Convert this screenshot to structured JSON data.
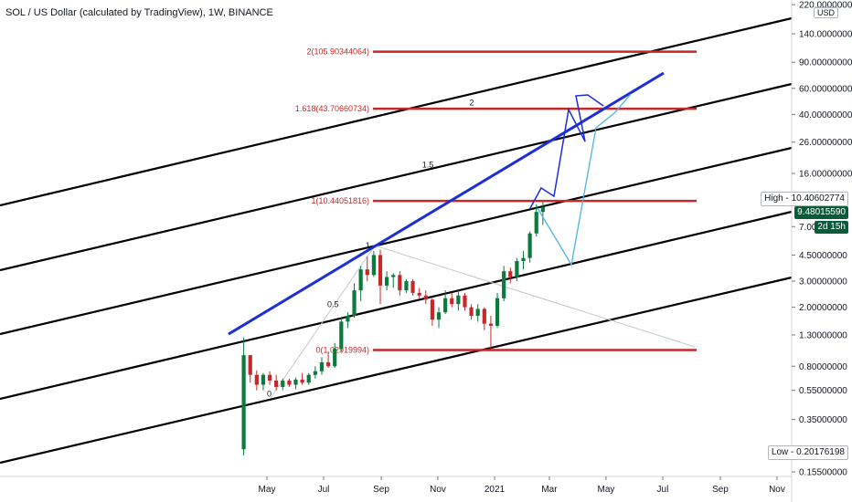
{
  "title": "SOL / US Dollar (calculated by TradingView), 1W, BINANCE",
  "currency_label": "USD",
  "price_badges": {
    "high": "High - 10.40602774",
    "last": "9.48015590",
    "countdown": "2d 15h",
    "low": "Low - 0.20176198"
  },
  "chart_data": {
    "type": "candlestick",
    "yscale": "log",
    "ylim": [
      0.13,
      240
    ],
    "y_ticks": [
      "220.00000000",
      "140.00000000",
      "90.00000000",
      "60.00000000",
      "40.00000000",
      "26.00000000",
      "16.00000000",
      "7.00",
      "4.50000000",
      "3.00000000",
      "2.00000000",
      "1.30000000",
      "0.80000000",
      "0.55000000",
      "0.35000000",
      "0.22000000",
      "0.15500000"
    ],
    "y_tick_values": [
      220,
      140,
      90,
      60,
      40,
      26,
      16,
      7,
      4.5,
      3,
      2,
      1.3,
      0.8,
      0.55,
      0.35,
      0.22,
      0.155
    ],
    "x_ticks": [
      {
        "label": "May",
        "date": "2020-05-01"
      },
      {
        "label": "Jul",
        "date": "2020-07-01"
      },
      {
        "label": "Sep",
        "date": "2020-09-01"
      },
      {
        "label": "Nov",
        "date": "2020-11-01"
      },
      {
        "label": "2021",
        "date": "2021-01-01"
      },
      {
        "label": "Mar",
        "date": "2021-03-01"
      },
      {
        "label": "May",
        "date": "2021-05-01"
      },
      {
        "label": "Jul",
        "date": "2021-07-01"
      },
      {
        "label": "Sep",
        "date": "2021-09-01"
      },
      {
        "label": "Nov",
        "date": "2021-11-01"
      }
    ],
    "xlim": [
      "2020-03-01",
      "2021-12-01"
    ],
    "candles": [
      {
        "t": "2020-04-06",
        "o": 0.22,
        "h": 1.25,
        "l": 0.2,
        "c": 0.95
      },
      {
        "t": "2020-04-13",
        "o": 0.95,
        "h": 0.95,
        "l": 0.62,
        "c": 0.7
      },
      {
        "t": "2020-04-20",
        "o": 0.7,
        "h": 0.75,
        "l": 0.55,
        "c": 0.6
      },
      {
        "t": "2020-04-27",
        "o": 0.6,
        "h": 0.72,
        "l": 0.55,
        "c": 0.7
      },
      {
        "t": "2020-05-04",
        "o": 0.7,
        "h": 0.74,
        "l": 0.6,
        "c": 0.64
      },
      {
        "t": "2020-05-11",
        "o": 0.64,
        "h": 0.7,
        "l": 0.55,
        "c": 0.58
      },
      {
        "t": "2020-05-18",
        "o": 0.58,
        "h": 0.66,
        "l": 0.55,
        "c": 0.64
      },
      {
        "t": "2020-05-25",
        "o": 0.64,
        "h": 0.66,
        "l": 0.58,
        "c": 0.6
      },
      {
        "t": "2020-06-01",
        "o": 0.6,
        "h": 0.67,
        "l": 0.56,
        "c": 0.65
      },
      {
        "t": "2020-06-08",
        "o": 0.65,
        "h": 0.72,
        "l": 0.6,
        "c": 0.62
      },
      {
        "t": "2020-06-15",
        "o": 0.62,
        "h": 0.72,
        "l": 0.6,
        "c": 0.7
      },
      {
        "t": "2020-06-22",
        "o": 0.7,
        "h": 0.8,
        "l": 0.66,
        "c": 0.74
      },
      {
        "t": "2020-06-29",
        "o": 0.74,
        "h": 0.92,
        "l": 0.7,
        "c": 0.85
      },
      {
        "t": "2020-07-06",
        "o": 0.85,
        "h": 1.0,
        "l": 0.78,
        "c": 0.8
      },
      {
        "t": "2020-07-13",
        "o": 0.8,
        "h": 1.15,
        "l": 0.78,
        "c": 1.05
      },
      {
        "t": "2020-07-20",
        "o": 1.05,
        "h": 1.7,
        "l": 1.0,
        "c": 1.6
      },
      {
        "t": "2020-07-27",
        "o": 1.6,
        "h": 1.85,
        "l": 1.45,
        "c": 1.75
      },
      {
        "t": "2020-08-03",
        "o": 1.75,
        "h": 2.9,
        "l": 1.7,
        "c": 2.6
      },
      {
        "t": "2020-08-10",
        "o": 2.6,
        "h": 3.8,
        "l": 2.2,
        "c": 3.6
      },
      {
        "t": "2020-08-17",
        "o": 3.6,
        "h": 4.4,
        "l": 3.0,
        "c": 3.3
      },
      {
        "t": "2020-08-24",
        "o": 3.3,
        "h": 4.8,
        "l": 3.2,
        "c": 4.5
      },
      {
        "t": "2020-08-31",
        "o": 4.5,
        "h": 4.9,
        "l": 2.1,
        "c": 2.8
      },
      {
        "t": "2020-09-07",
        "o": 2.8,
        "h": 3.5,
        "l": 2.6,
        "c": 3.2
      },
      {
        "t": "2020-09-14",
        "o": 3.2,
        "h": 3.4,
        "l": 2.7,
        "c": 3.3
      },
      {
        "t": "2020-09-21",
        "o": 3.3,
        "h": 3.5,
        "l": 2.4,
        "c": 2.6
      },
      {
        "t": "2020-09-28",
        "o": 2.6,
        "h": 3.1,
        "l": 2.5,
        "c": 3.0
      },
      {
        "t": "2020-10-05",
        "o": 3.0,
        "h": 3.1,
        "l": 2.4,
        "c": 2.5
      },
      {
        "t": "2020-10-12",
        "o": 2.5,
        "h": 2.7,
        "l": 2.3,
        "c": 2.4
      },
      {
        "t": "2020-10-19",
        "o": 2.4,
        "h": 2.6,
        "l": 2.1,
        "c": 2.25
      },
      {
        "t": "2020-10-26",
        "o": 2.25,
        "h": 2.3,
        "l": 1.5,
        "c": 1.65
      },
      {
        "t": "2020-11-02",
        "o": 1.65,
        "h": 2.0,
        "l": 1.45,
        "c": 1.85
      },
      {
        "t": "2020-11-09",
        "o": 1.85,
        "h": 2.6,
        "l": 1.8,
        "c": 2.3
      },
      {
        "t": "2020-11-16",
        "o": 2.3,
        "h": 2.5,
        "l": 2.0,
        "c": 2.1
      },
      {
        "t": "2020-11-23",
        "o": 2.1,
        "h": 2.6,
        "l": 1.9,
        "c": 2.4
      },
      {
        "t": "2020-11-30",
        "o": 2.4,
        "h": 2.5,
        "l": 1.9,
        "c": 2.0
      },
      {
        "t": "2020-12-07",
        "o": 2.0,
        "h": 2.1,
        "l": 1.65,
        "c": 1.75
      },
      {
        "t": "2020-12-14",
        "o": 1.75,
        "h": 2.1,
        "l": 1.6,
        "c": 1.95
      },
      {
        "t": "2020-12-21",
        "o": 1.95,
        "h": 2.0,
        "l": 1.4,
        "c": 1.55
      },
      {
        "t": "2020-12-28",
        "o": 1.55,
        "h": 1.75,
        "l": 1.05,
        "c": 1.5
      },
      {
        "t": "2021-01-04",
        "o": 1.5,
        "h": 2.5,
        "l": 1.45,
        "c": 2.3
      },
      {
        "t": "2021-01-11",
        "o": 2.3,
        "h": 3.8,
        "l": 2.2,
        "c": 3.5
      },
      {
        "t": "2021-01-18",
        "o": 3.5,
        "h": 3.7,
        "l": 2.9,
        "c": 3.2
      },
      {
        "t": "2021-01-25",
        "o": 3.2,
        "h": 4.3,
        "l": 3.0,
        "c": 4.1
      },
      {
        "t": "2021-02-01",
        "o": 4.1,
        "h": 4.8,
        "l": 3.6,
        "c": 4.3
      },
      {
        "t": "2021-02-08",
        "o": 4.3,
        "h": 6.5,
        "l": 4.0,
        "c": 6.3
      },
      {
        "t": "2021-02-15",
        "o": 6.3,
        "h": 9.9,
        "l": 6.0,
        "c": 8.8
      },
      {
        "t": "2021-02-22",
        "o": 8.8,
        "h": 10.41,
        "l": 7.2,
        "c": 9.48
      }
    ],
    "horizontal_levels": [
      {
        "label": "2(105.90344064)",
        "value": 105.90344064,
        "level": "2"
      },
      {
        "label": "1.618(43.70660734)",
        "value": 43.70660734,
        "level": "1.618"
      },
      {
        "label": "1(10.44051816)",
        "value": 10.44051816,
        "level": "1"
      },
      {
        "label": "0(1.02919994)",
        "value": 1.02919994,
        "level": "0"
      }
    ],
    "fib_mid_labels": [
      {
        "label": "0.5",
        "date": "2020-07-05",
        "value": 2.0
      },
      {
        "label": "1",
        "date": "2020-08-15",
        "value": 5.0
      },
      {
        "label": "1.5",
        "date": "2020-10-15",
        "value": 17.5
      },
      {
        "label": "2",
        "date": "2020-12-05",
        "value": 46.0
      },
      {
        "label": "0",
        "date": "2020-05-01",
        "value": 0.5
      }
    ],
    "grid": false
  }
}
